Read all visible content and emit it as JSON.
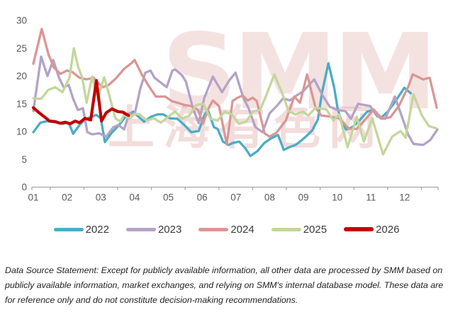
{
  "chart_data": {
    "type": "line",
    "title": "",
    "grid": false,
    "legend_position": "bottom",
    "x_axis": {
      "unit": "month",
      "labels": [
        "01",
        "02",
        "03",
        "04",
        "05",
        "06",
        "07",
        "08",
        "09",
        "10",
        "11",
        "12"
      ]
    },
    "y_axis": {
      "ticks": [
        0,
        5,
        10,
        15,
        20,
        25,
        30
      ],
      "min": 0,
      "max": 31
    },
    "series": [
      {
        "name": "2022",
        "color": "#4BACC6",
        "width": 3.3,
        "points": [
          [
            1.0,
            9.9
          ],
          [
            1.21,
            11.6
          ],
          [
            1.42,
            11.9
          ],
          [
            1.65,
            11.7
          ],
          [
            1.86,
            11.4
          ],
          [
            2.05,
            11.6
          ],
          [
            2.18,
            9.6
          ],
          [
            2.37,
            11.2
          ],
          [
            2.53,
            12.2
          ],
          [
            2.7,
            12.6
          ],
          [
            2.87,
            13.0
          ],
          [
            3.0,
            12.4
          ],
          [
            3.12,
            8.1
          ],
          [
            3.31,
            9.7
          ],
          [
            3.54,
            11.2
          ],
          [
            3.75,
            12.8
          ],
          [
            3.96,
            13.6
          ],
          [
            4.11,
            12.7
          ],
          [
            4.28,
            11.8
          ],
          [
            4.49,
            12.7
          ],
          [
            4.68,
            13.1
          ],
          [
            4.85,
            13.1
          ],
          [
            5.05,
            12.4
          ],
          [
            5.27,
            12.3
          ],
          [
            5.47,
            11.2
          ],
          [
            5.68,
            9.9
          ],
          [
            5.9,
            10.1
          ],
          [
            6.06,
            12.9
          ],
          [
            6.17,
            13.9
          ],
          [
            6.35,
            10.8
          ],
          [
            6.46,
            10.5
          ],
          [
            6.62,
            8.2
          ],
          [
            6.78,
            7.6
          ],
          [
            6.93,
            8.0
          ],
          [
            7.1,
            8.2
          ],
          [
            7.28,
            7.0
          ],
          [
            7.43,
            5.6
          ],
          [
            7.64,
            6.5
          ],
          [
            7.85,
            8.0
          ],
          [
            8.05,
            8.8
          ],
          [
            8.25,
            9.4
          ],
          [
            8.42,
            6.7
          ],
          [
            8.58,
            7.2
          ],
          [
            8.77,
            7.6
          ],
          [
            8.94,
            8.4
          ],
          [
            9.09,
            9.2
          ],
          [
            9.26,
            10.2
          ],
          [
            9.43,
            12.2
          ],
          [
            9.55,
            17.0
          ],
          [
            9.74,
            22.3
          ],
          [
            9.91,
            18.0
          ],
          [
            10.02,
            14.0
          ],
          [
            10.13,
            11.8
          ],
          [
            10.26,
            10.4
          ],
          [
            10.45,
            10.8
          ],
          [
            10.66,
            12.0
          ],
          [
            10.89,
            13.6
          ],
          [
            11.08,
            13.9
          ],
          [
            11.29,
            12.4
          ],
          [
            11.5,
            13.6
          ],
          [
            11.71,
            15.3
          ],
          [
            11.99,
            17.9
          ],
          [
            12.18,
            16.9
          ]
        ]
      },
      {
        "name": "2023",
        "color": "#B3A2C7",
        "width": 3.3,
        "points": [
          [
            1.0,
            13.7
          ],
          [
            1.23,
            23.5
          ],
          [
            1.42,
            20.0
          ],
          [
            1.59,
            22.9
          ],
          [
            1.76,
            19.7
          ],
          [
            1.9,
            18.0
          ],
          [
            2.05,
            18.4
          ],
          [
            2.18,
            15.9
          ],
          [
            2.32,
            13.9
          ],
          [
            2.47,
            14.2
          ],
          [
            2.6,
            9.9
          ],
          [
            2.74,
            9.5
          ],
          [
            2.95,
            9.7
          ],
          [
            3.16,
            9.1
          ],
          [
            3.37,
            10.8
          ],
          [
            3.52,
            11.2
          ],
          [
            3.69,
            10.4
          ],
          [
            3.84,
            13.3
          ],
          [
            4.0,
            13.1
          ],
          [
            4.17,
            17.8
          ],
          [
            4.32,
            20.6
          ],
          [
            4.47,
            21.0
          ],
          [
            4.59,
            19.7
          ],
          [
            4.78,
            18.8
          ],
          [
            4.95,
            18.0
          ],
          [
            5.12,
            21.0
          ],
          [
            5.2,
            21.2
          ],
          [
            5.41,
            20.1
          ],
          [
            5.52,
            19.0
          ],
          [
            5.73,
            14.2
          ],
          [
            5.9,
            11.5
          ],
          [
            6.06,
            16.0
          ],
          [
            6.32,
            19.9
          ],
          [
            6.59,
            17.1
          ],
          [
            6.8,
            19.2
          ],
          [
            6.99,
            20.6
          ],
          [
            7.22,
            16.1
          ],
          [
            7.37,
            14.3
          ],
          [
            7.58,
            10.8
          ],
          [
            7.79,
            9.9
          ],
          [
            8.0,
            13.3
          ],
          [
            8.21,
            14.6
          ],
          [
            8.4,
            16.0
          ],
          [
            8.6,
            15.6
          ],
          [
            8.8,
            16.5
          ],
          [
            9.0,
            17.3
          ],
          [
            9.15,
            18.3
          ],
          [
            9.32,
            19.4
          ],
          [
            9.57,
            16.5
          ],
          [
            9.78,
            14.5
          ],
          [
            10.0,
            13.9
          ],
          [
            10.24,
            13.7
          ],
          [
            10.41,
            12.3
          ],
          [
            10.62,
            15.0
          ],
          [
            10.98,
            14.6
          ],
          [
            11.19,
            12.7
          ],
          [
            11.42,
            12.3
          ],
          [
            11.71,
            16.3
          ],
          [
            11.94,
            12.3
          ],
          [
            12.1,
            9.5
          ],
          [
            12.26,
            7.8
          ],
          [
            12.55,
            7.6
          ],
          [
            12.76,
            8.5
          ],
          [
            12.97,
            10.4
          ]
        ]
      },
      {
        "name": "2024",
        "color": "#D99694",
        "width": 3.3,
        "points": [
          [
            1.0,
            22.2
          ],
          [
            1.25,
            28.5
          ],
          [
            1.45,
            23.9
          ],
          [
            1.6,
            21.6
          ],
          [
            1.8,
            20.4
          ],
          [
            2.0,
            21.0
          ],
          [
            2.16,
            20.7
          ],
          [
            2.37,
            19.7
          ],
          [
            2.58,
            19.4
          ],
          [
            2.79,
            19.7
          ],
          [
            2.91,
            18.8
          ],
          [
            3.06,
            18.0
          ],
          [
            3.23,
            18.4
          ],
          [
            3.45,
            19.6
          ],
          [
            3.69,
            21.3
          ],
          [
            3.9,
            22.3
          ],
          [
            4.0,
            22.9
          ],
          [
            4.21,
            20.3
          ],
          [
            4.42,
            18.2
          ],
          [
            4.63,
            16.3
          ],
          [
            4.91,
            16.3
          ],
          [
            5.1,
            15.5
          ],
          [
            5.27,
            15.2
          ],
          [
            5.47,
            14.8
          ],
          [
            5.68,
            14.6
          ],
          [
            5.88,
            13.9
          ],
          [
            6.02,
            11.4
          ],
          [
            6.2,
            14.3
          ],
          [
            6.32,
            15.6
          ],
          [
            6.5,
            14.6
          ],
          [
            6.73,
            7.7
          ],
          [
            6.9,
            15.5
          ],
          [
            7.05,
            16.1
          ],
          [
            7.2,
            16.5
          ],
          [
            7.35,
            15.6
          ],
          [
            7.5,
            16.1
          ],
          [
            7.62,
            15.5
          ],
          [
            7.85,
            9.7
          ],
          [
            8.0,
            9.1
          ],
          [
            8.2,
            9.8
          ],
          [
            8.48,
            12.0
          ],
          [
            8.73,
            16.3
          ],
          [
            8.9,
            15.2
          ],
          [
            9.11,
            20.3
          ],
          [
            9.36,
            14.3
          ],
          [
            9.53,
            12.9
          ],
          [
            9.78,
            12.7
          ],
          [
            10.06,
            12.4
          ],
          [
            10.35,
            10.5
          ],
          [
            10.58,
            10.5
          ],
          [
            10.81,
            12.0
          ],
          [
            11.08,
            14.0
          ],
          [
            11.33,
            12.3
          ],
          [
            11.58,
            12.6
          ],
          [
            11.83,
            14.6
          ],
          [
            12.1,
            18.0
          ],
          [
            12.24,
            20.3
          ],
          [
            12.55,
            19.4
          ],
          [
            12.74,
            19.7
          ],
          [
            12.95,
            14.3
          ]
        ]
      },
      {
        "name": "2025",
        "color": "#C3D69B",
        "width": 3.3,
        "points": [
          [
            1.0,
            16.0
          ],
          [
            1.23,
            15.9
          ],
          [
            1.44,
            17.5
          ],
          [
            1.65,
            18.0
          ],
          [
            1.86,
            17.1
          ],
          [
            2.07,
            19.7
          ],
          [
            2.2,
            25.0
          ],
          [
            2.32,
            21.8
          ],
          [
            2.45,
            19.7
          ],
          [
            2.58,
            15.2
          ],
          [
            2.74,
            19.9
          ],
          [
            2.91,
            16.0
          ],
          [
            3.1,
            19.8
          ],
          [
            3.27,
            16.1
          ],
          [
            3.43,
            12.4
          ],
          [
            3.58,
            11.8
          ],
          [
            3.69,
            13.1
          ],
          [
            3.84,
            12.3
          ],
          [
            4.0,
            13.2
          ],
          [
            4.15,
            13.1
          ],
          [
            4.36,
            12.0
          ],
          [
            4.57,
            12.4
          ],
          [
            4.78,
            11.6
          ],
          [
            5.0,
            12.7
          ],
          [
            5.2,
            13.6
          ],
          [
            5.41,
            12.3
          ],
          [
            5.62,
            12.9
          ],
          [
            5.83,
            14.8
          ],
          [
            6.04,
            15.0
          ],
          [
            6.25,
            12.3
          ],
          [
            6.46,
            12.0
          ],
          [
            6.67,
            13.6
          ],
          [
            6.88,
            13.1
          ],
          [
            7.09,
            11.4
          ],
          [
            7.3,
            11.8
          ],
          [
            7.51,
            13.6
          ],
          [
            7.72,
            13.9
          ],
          [
            7.93,
            17.0
          ],
          [
            8.14,
            20.3
          ],
          [
            8.37,
            16.9
          ],
          [
            8.56,
            13.7
          ],
          [
            8.77,
            13.1
          ],
          [
            8.98,
            13.6
          ],
          [
            9.15,
            12.9
          ],
          [
            9.36,
            14.3
          ],
          [
            9.68,
            14.0
          ],
          [
            9.89,
            12.0
          ],
          [
            10.06,
            13.1
          ],
          [
            10.31,
            7.2
          ],
          [
            10.58,
            12.7
          ],
          [
            10.79,
            8.2
          ],
          [
            11.04,
            12.4
          ],
          [
            11.36,
            5.9
          ],
          [
            11.63,
            9.1
          ],
          [
            11.88,
            10.1
          ],
          [
            12.03,
            8.9
          ],
          [
            12.26,
            16.7
          ],
          [
            12.51,
            12.9
          ],
          [
            12.72,
            11.0
          ],
          [
            12.93,
            10.6
          ]
        ]
      },
      {
        "name": "2026",
        "color": "#C00000",
        "width": 4.2,
        "points": [
          [
            1.0,
            14.3
          ],
          [
            1.17,
            13.4
          ],
          [
            1.34,
            12.6
          ],
          [
            1.48,
            11.9
          ],
          [
            1.65,
            11.8
          ],
          [
            1.8,
            11.5
          ],
          [
            1.95,
            11.7
          ],
          [
            2.09,
            11.4
          ],
          [
            2.24,
            11.9
          ],
          [
            2.37,
            11.6
          ],
          [
            2.53,
            12.4
          ],
          [
            2.7,
            12.1
          ],
          [
            2.87,
            19.2
          ],
          [
            3.02,
            11.9
          ],
          [
            3.16,
            13.4
          ],
          [
            3.33,
            14.1
          ],
          [
            3.5,
            13.6
          ],
          [
            3.65,
            13.5
          ],
          [
            3.82,
            12.9
          ]
        ]
      }
    ]
  },
  "watermark": {
    "logo_text": "SMM",
    "cn_text": "上海有色网"
  },
  "footer": {
    "lines": [
      "Data Source Statement: Except for publicly available information, all other data are processed by SMM based on",
      "publicly available information, market exchanges, and relying on SMM's internal database model. These data are",
      "for reference only and do not constitute decision-making recommendations."
    ]
  },
  "colors": {
    "axis_line": "#A6A6A6",
    "axis_text": "#595959",
    "legend_text": "#3A3A3A",
    "footer_text": "#222222",
    "watermark": "#D99694"
  }
}
